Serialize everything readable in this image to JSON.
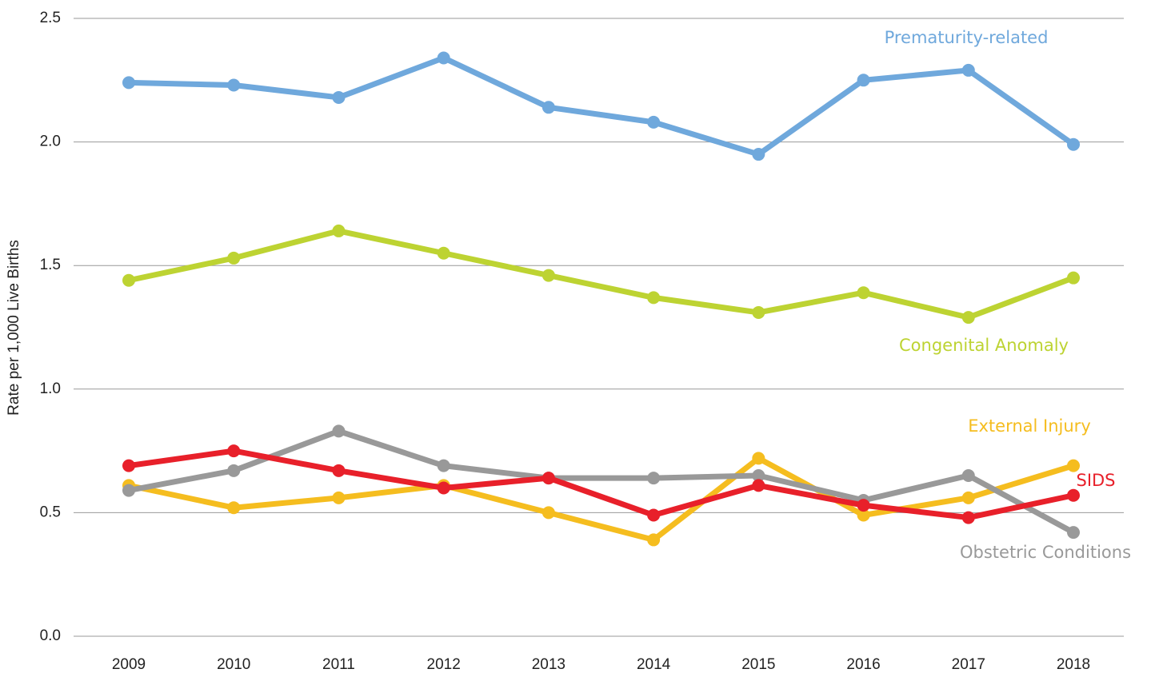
{
  "chart_data": {
    "type": "line",
    "y_label": "Rate per 1,000 Live Births",
    "categories": [
      "2009",
      "2010",
      "2011",
      "2012",
      "2013",
      "2014",
      "2015",
      "2016",
      "2017",
      "2018"
    ],
    "series": [
      {
        "name": "Prematurity-related",
        "color": "#6fa8dc",
        "values": [
          2.24,
          2.23,
          2.18,
          2.34,
          2.14,
          2.08,
          1.95,
          2.25,
          2.29,
          1.99
        ]
      },
      {
        "name": "Congenital Anomaly",
        "color": "#bdd332",
        "values": [
          1.44,
          1.53,
          1.64,
          1.55,
          1.46,
          1.37,
          1.31,
          1.39,
          1.29,
          1.45
        ]
      },
      {
        "name": "External Injury",
        "color": "#f5bd1f",
        "values": [
          0.61,
          0.52,
          0.56,
          0.61,
          0.5,
          0.39,
          0.72,
          0.49,
          0.56,
          0.69
        ]
      },
      {
        "name": "Obstetric Conditions",
        "color": "#999999",
        "values": [
          0.59,
          0.67,
          0.83,
          0.69,
          0.64,
          0.64,
          0.65,
          0.55,
          0.65,
          0.42
        ]
      },
      {
        "name": "SIDS",
        "color": "#e8202a",
        "values": [
          0.69,
          0.75,
          0.67,
          0.6,
          0.64,
          0.49,
          0.61,
          0.53,
          0.48,
          0.57
        ]
      }
    ],
    "ylim": [
      0,
      2.5
    ],
    "yticks": [
      {
        "value": 0,
        "label": "0.0"
      },
      0.5,
      {
        "value": 1,
        "label": "1.0"
      },
      1.5,
      {
        "value": 2,
        "label": "2.0"
      },
      2.5
    ],
    "grid": true
  }
}
